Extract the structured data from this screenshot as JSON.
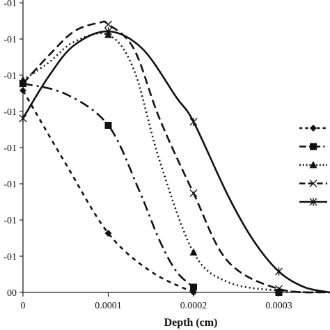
{
  "chart_data": {
    "type": "line",
    "xlabel": "Depth (cm)",
    "ylabel": "",
    "x_ticks": [
      "0",
      "0.0001",
      "0.0002",
      "0.0003"
    ],
    "xlim": [
      0,
      0.00036
    ],
    "y_tick_labels": [
      "00",
      "-01",
      "-01",
      "-01",
      "-01",
      "-01",
      "-01",
      "-01",
      "-01"
    ],
    "y_tick_values": [
      0,
      1,
      2,
      3,
      4,
      5,
      6,
      7,
      8
    ],
    "ylim": [
      0,
      8.4
    ],
    "grid": false,
    "legend_position": "right",
    "series": [
      {
        "marker": "diamond",
        "dash": "6,6",
        "x": [
          0,
          5e-05,
          0.0001,
          0.00015,
          0.0002
        ],
        "y": [
          5.8,
          3.7,
          1.7,
          0.6,
          0.0
        ],
        "marker_x": [
          0,
          0.0001,
          0.0002
        ],
        "marker_y": [
          5.8,
          1.7,
          0.0
        ]
      },
      {
        "marker": "square",
        "dash": "14,6,3,6",
        "x": [
          0,
          5e-05,
          0.0001,
          0.000135,
          0.00016,
          0.00018,
          0.0002
        ],
        "y": [
          6.0,
          5.7,
          4.8,
          3.0,
          1.5,
          0.6,
          0.15
        ],
        "marker_x": [
          0,
          0.0001,
          0.0002,
          0.0003
        ],
        "marker_y": [
          6.0,
          4.8,
          0.15,
          0.0
        ]
      },
      {
        "marker": "triangle",
        "dash": "2,4",
        "x": [
          0,
          3e-05,
          6e-05,
          0.0001,
          0.00013,
          0.00016,
          0.0002,
          0.00024,
          0.0003,
          0.00036
        ],
        "y": [
          6.1,
          6.6,
          7.2,
          7.4,
          6.4,
          3.8,
          1.15,
          0.3,
          0.05,
          0.0
        ],
        "marker_x": [
          0,
          0.0001,
          0.0002,
          0.0003
        ],
        "marker_y": [
          6.1,
          7.4,
          1.15,
          0.05
        ]
      },
      {
        "marker": "x",
        "dash": "12,6",
        "x": [
          0,
          3e-05,
          6e-05,
          9e-05,
          0.0001,
          0.00013,
          0.00016,
          0.0002,
          0.00024,
          0.0003,
          0.00036
        ],
        "y": [
          6.0,
          6.8,
          7.5,
          7.75,
          7.7,
          7.0,
          5.0,
          2.85,
          0.9,
          0.1,
          0.0
        ],
        "marker_x": [
          0,
          0.0001,
          0.0002,
          0.0003
        ],
        "marker_y": [
          6.0,
          7.7,
          2.85,
          0.1
        ]
      },
      {
        "marker": "star",
        "dash": "",
        "x": [
          0,
          3e-05,
          6e-05,
          0.0001,
          0.00014,
          0.00018,
          0.0002,
          0.00024,
          0.00027,
          0.0003,
          0.00033,
          0.00036
        ],
        "y": [
          5.0,
          6.2,
          7.1,
          7.5,
          7.0,
          5.6,
          4.9,
          2.8,
          1.5,
          0.6,
          0.15,
          0.0
        ],
        "marker_x": [
          0,
          0.0001,
          0.0002,
          0.0003
        ],
        "marker_y": [
          5.0,
          7.5,
          4.9,
          0.6
        ]
      }
    ]
  }
}
